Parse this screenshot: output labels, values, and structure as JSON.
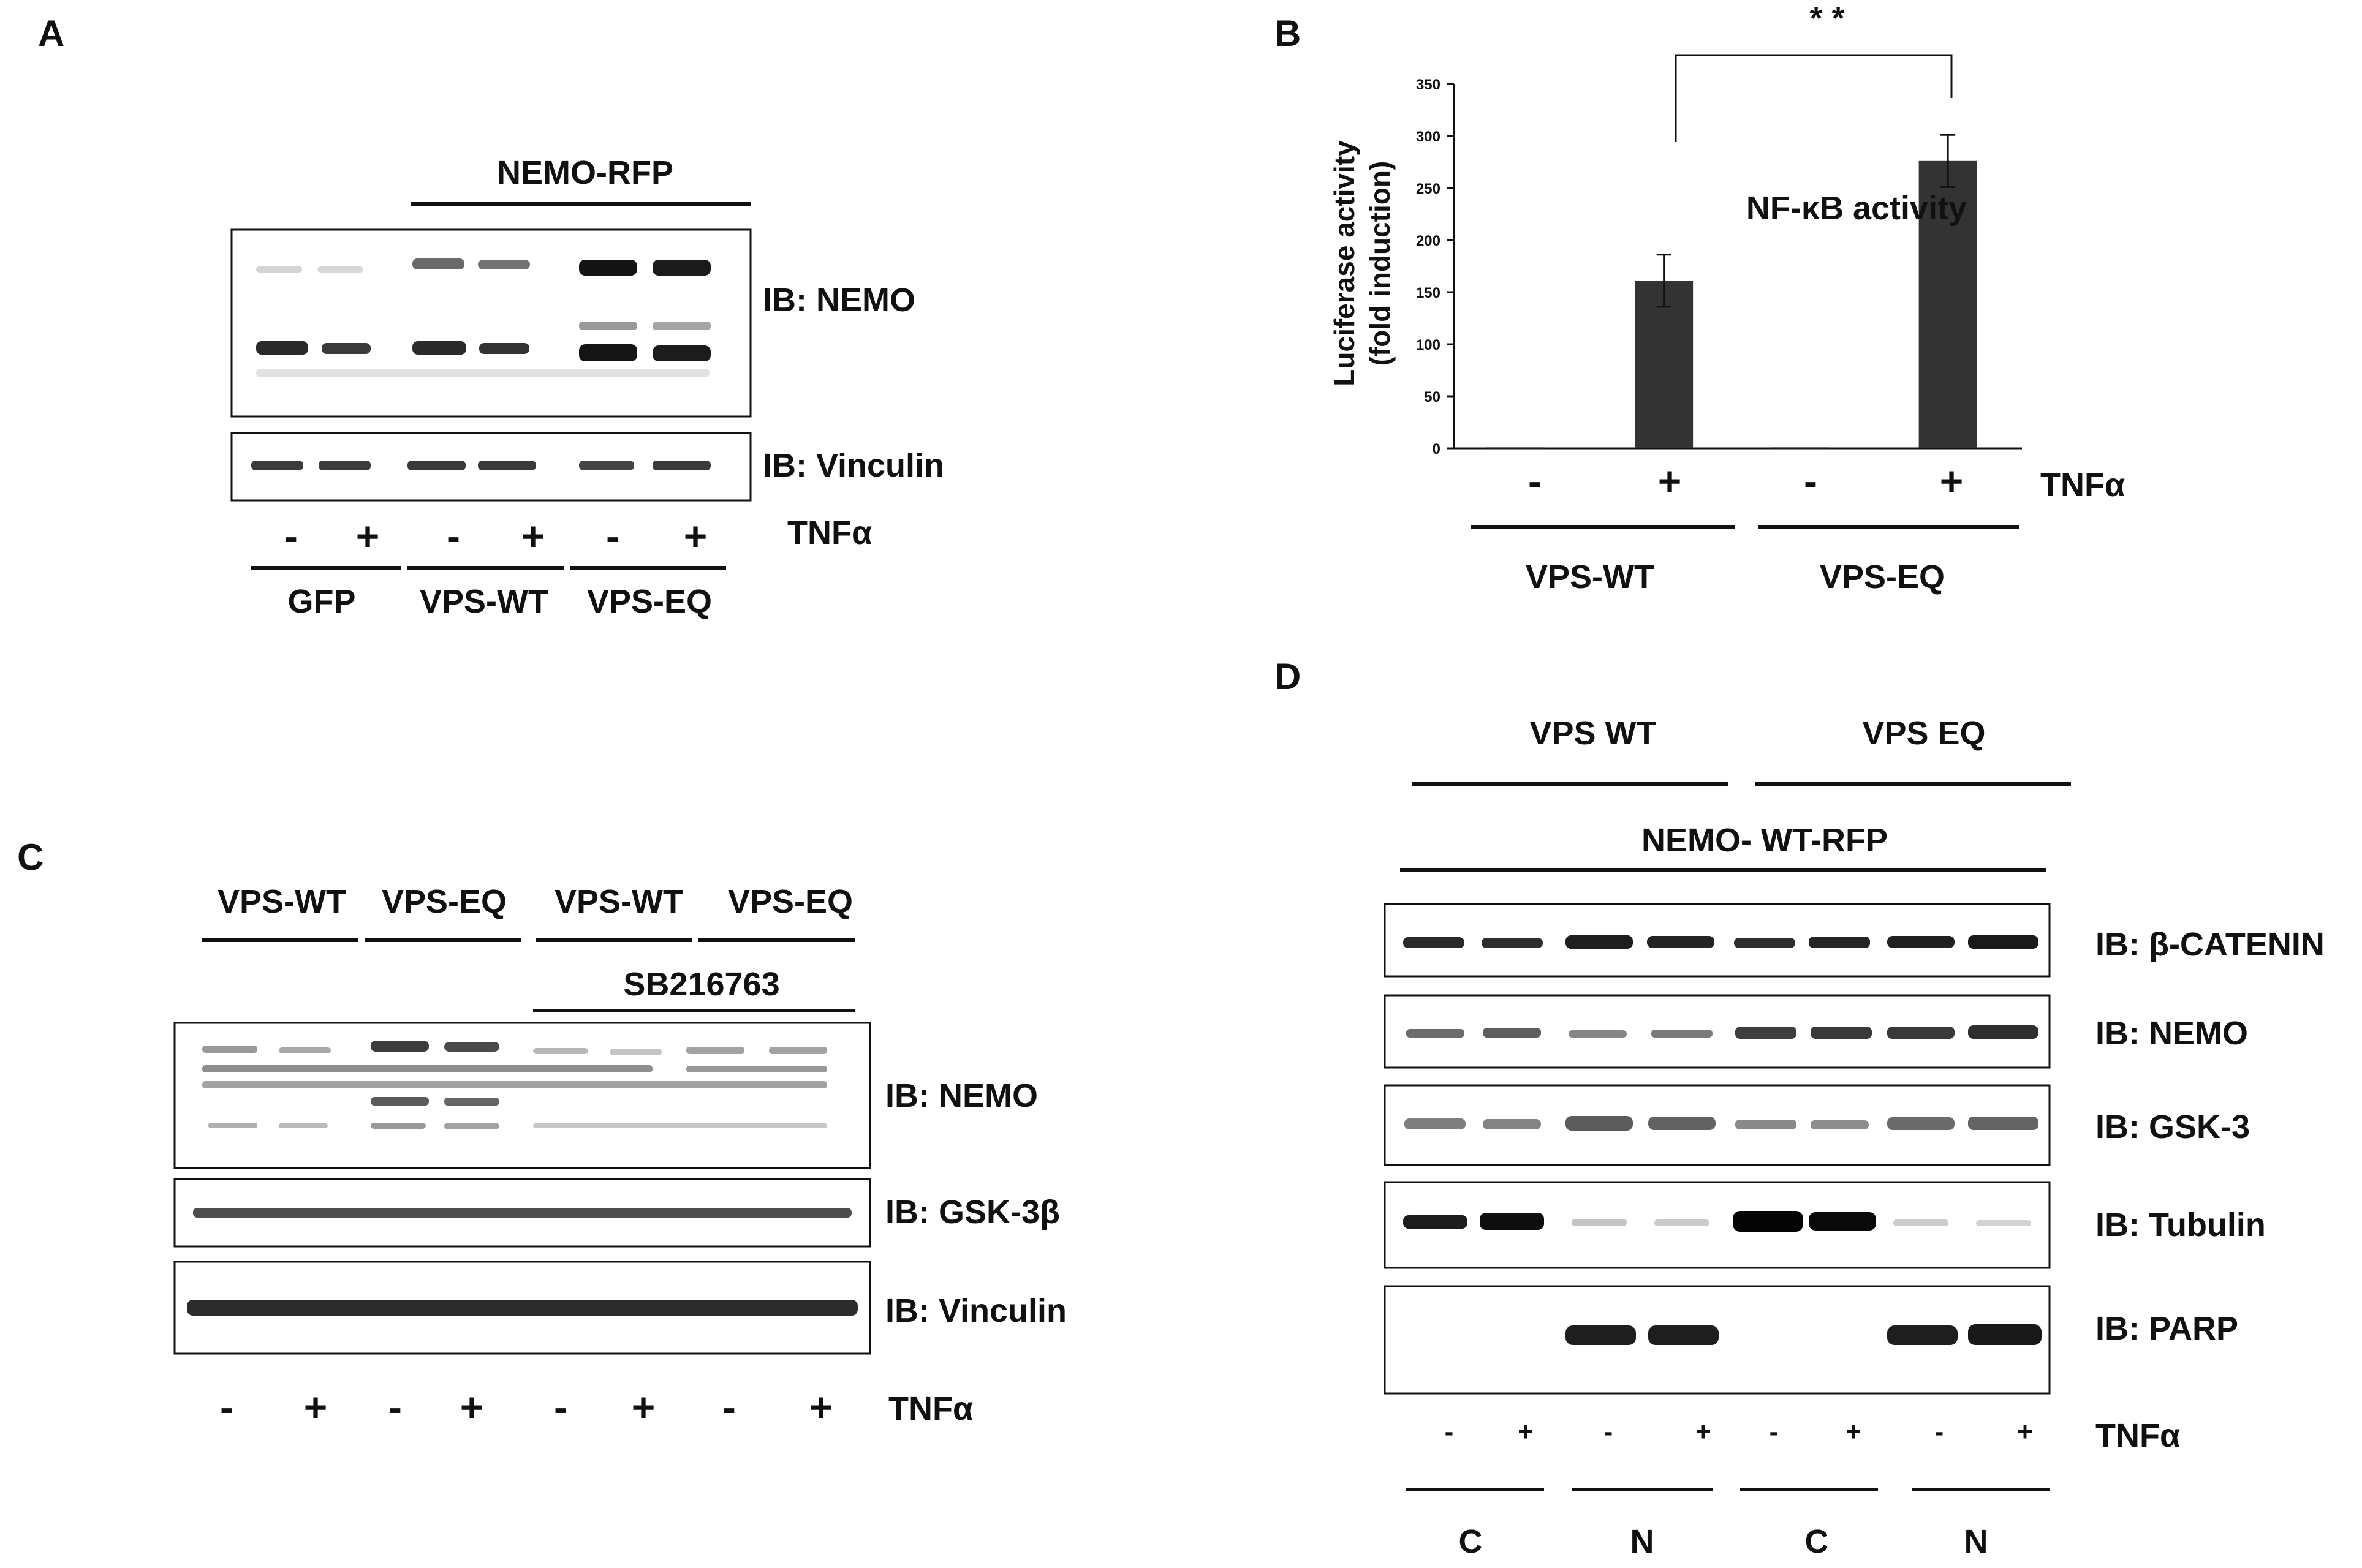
{
  "panel_a": {
    "letter": "A",
    "header": "NEMO-RFP",
    "blot_labels": [
      "IB: NEMO",
      "IB: Vinculin"
    ],
    "signs": [
      "-",
      "+",
      "-",
      "+",
      "-",
      "+"
    ],
    "treatment": "TNFα",
    "groups": [
      "GFP",
      "VPS-WT",
      "VPS-EQ"
    ]
  },
  "panel_b": {
    "letter": "B",
    "significance": "* *",
    "signs": [
      "-",
      "+",
      "-",
      "+"
    ],
    "treatment": "TNFα",
    "groups": [
      "VPS-WT",
      "VPS-EQ"
    ]
  },
  "panel_c": {
    "letter": "C",
    "groups": [
      "VPS-WT",
      "VPS-EQ",
      "VPS-WT",
      "VPS-EQ"
    ],
    "inhibitor": "SB216763",
    "blot_labels": [
      "IB: NEMO",
      "IB: GSK-3β",
      "IB: Vinculin"
    ],
    "signs": [
      "-",
      "+",
      "-",
      "+",
      "-",
      "+",
      "-",
      "+"
    ],
    "treatment": "TNFα"
  },
  "panel_d": {
    "letter": "D",
    "groups": [
      "VPS WT",
      "VPS EQ"
    ],
    "construct": "NEMO- WT-RFP",
    "blot_labels": [
      "IB: β-CATENIN",
      "IB: NEMO",
      "IB: GSK-3",
      "IB: Tubulin",
      "IB: PARP"
    ],
    "signs": [
      "-",
      "+",
      "-",
      "+",
      "-",
      "+",
      "-",
      "+"
    ],
    "treatment": "TNFα",
    "fractions": [
      "C",
      "N",
      "C",
      "N"
    ]
  },
  "chart_data": {
    "type": "bar",
    "title": "NF-κB activity",
    "xlabel": "",
    "ylabel": "Luciferase activity (fold induction)",
    "categories": [
      "VPS-WT -",
      "VPS-WT +",
      "VPS-EQ -",
      "VPS-EQ +"
    ],
    "values": [
      1,
      161,
      1,
      276
    ],
    "errors": [
      0,
      25,
      0,
      25
    ],
    "ylim": [
      0,
      350
    ],
    "yticks": [
      "0",
      "50",
      "100",
      "150",
      "200",
      "250",
      "300",
      "350"
    ],
    "bar_color": "#333333"
  }
}
